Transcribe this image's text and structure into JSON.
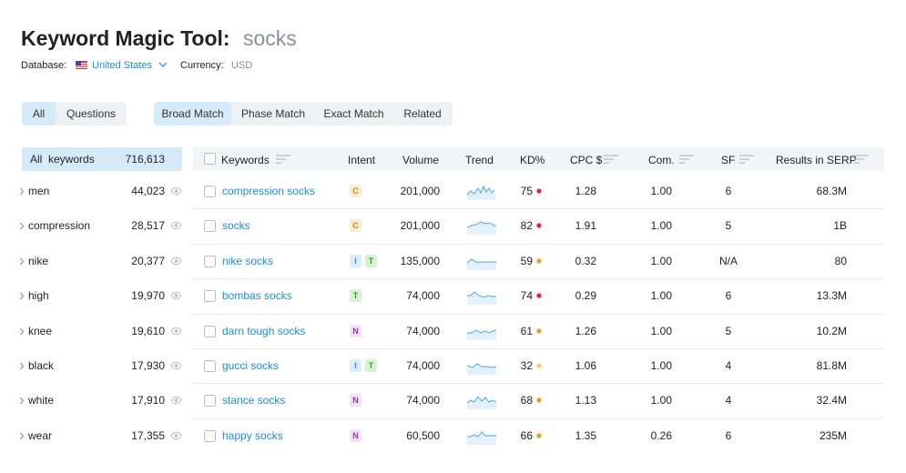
{
  "header": {
    "title": "Keyword Magic Tool:",
    "query": "socks",
    "database_label": "Database:",
    "database": "United States",
    "currency_label": "Currency:",
    "currency": "USD"
  },
  "filters": {
    "group": [
      "All",
      "Questions"
    ],
    "match": [
      "Broad Match",
      "Phase Match",
      "Exact Match",
      "Related"
    ]
  },
  "sidebar": {
    "header": {
      "label": "All  keywords",
      "count": "716,613"
    },
    "rows": [
      {
        "label": "men",
        "count": "44,023"
      },
      {
        "label": "compression",
        "count": "28,517"
      },
      {
        "label": "nike",
        "count": "20,377"
      },
      {
        "label": "high",
        "count": "19,970"
      },
      {
        "label": "knee",
        "count": "19,610"
      },
      {
        "label": "black",
        "count": "17,930"
      },
      {
        "label": "white",
        "count": "17,910"
      },
      {
        "label": "wear",
        "count": "17,355"
      }
    ]
  },
  "table": {
    "columns": [
      "Keywords",
      "Intent",
      "Volume",
      "Trend",
      "KD%",
      "CPC $",
      "Com.",
      "SF",
      "Results in SERP"
    ],
    "rows": [
      {
        "keyword": "compression socks",
        "intent": [
          "C"
        ],
        "volume": "201,000",
        "kd": "75",
        "kd_color": "#e5213a",
        "cpc": "1.28",
        "com": "1.00",
        "sf": "6",
        "results": "68.3M"
      },
      {
        "keyword": "socks",
        "intent": [
          "C"
        ],
        "volume": "201,000",
        "kd": "82",
        "kd_color": "#e5213a",
        "cpc": "1.91",
        "com": "1.00",
        "sf": "5",
        "results": "1B"
      },
      {
        "keyword": "nike socks",
        "intent": [
          "I",
          "T"
        ],
        "volume": "135,000",
        "kd": "59",
        "kd_color": "#f59a1a",
        "cpc": "0.32",
        "com": "1.00",
        "sf": "N/A",
        "results": "80"
      },
      {
        "keyword": "bombas socks",
        "intent": [
          "T"
        ],
        "volume": "74,000",
        "kd": "74",
        "kd_color": "#e5213a",
        "cpc": "0.29",
        "com": "1.00",
        "sf": "6",
        "results": "13.3M"
      },
      {
        "keyword": "darn tough socks",
        "intent": [
          "N"
        ],
        "volume": "74,000",
        "kd": "61",
        "kd_color": "#f59a1a",
        "cpc": "1.26",
        "com": "1.00",
        "sf": "5",
        "results": "10.2M"
      },
      {
        "keyword": "gucci socks",
        "intent": [
          "I",
          "T"
        ],
        "volume": "74,000",
        "kd": "32",
        "kd_color": "#fbc674",
        "cpc": "1.06",
        "com": "1.00",
        "sf": "4",
        "results": "81.8M"
      },
      {
        "keyword": "stance socks",
        "intent": [
          "N"
        ],
        "volume": "74,000",
        "kd": "68",
        "kd_color": "#f59a1a",
        "cpc": "1.13",
        "com": "1.00",
        "sf": "4",
        "results": "32.4M"
      },
      {
        "keyword": "happy socks",
        "intent": [
          "N"
        ],
        "volume": "60,500",
        "kd": "66",
        "kd_color": "#f59a1a",
        "cpc": "1.35",
        "com": "0.26",
        "sf": "6",
        "results": "235M"
      }
    ]
  }
}
